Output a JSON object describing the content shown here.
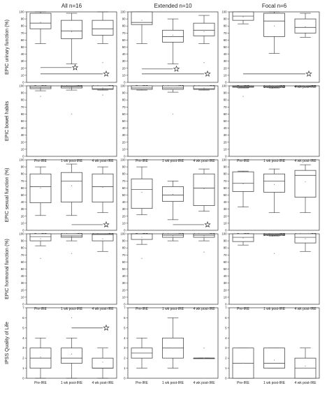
{
  "chart_data": {
    "type": "box",
    "columns": [
      "All n=16",
      "Extended n=10",
      "Focal n=6"
    ],
    "categories": [
      "Pre-IRE",
      "1 wk post-IRE",
      "4 wk post-IRE"
    ],
    "rows": [
      {
        "ylabel": "EPIC urinary function (%)",
        "ylim": [
          0,
          100
        ],
        "yticks": [
          0,
          10,
          20,
          30,
          40,
          50,
          60,
          70,
          80,
          90,
          100
        ],
        "panels": [
          {
            "boxes": [
              {
                "min": 55,
                "q1": 76,
                "median": 84,
                "q3": 98,
                "max": 100,
                "mean": 85
              },
              {
                "min": 26,
                "q1": 62,
                "median": 73,
                "q3": 88,
                "max": 98,
                "mean": 72
              },
              {
                "min": 55,
                "q1": 67,
                "median": 76,
                "q3": 88,
                "max": 100,
                "mean": 76
              }
            ],
            "outliers": [
              [
                2,
                28
              ]
            ],
            "sig": [
              {
                "from": 0,
                "to": 1,
                "y": 21,
                "star": true
              },
              {
                "from": 0,
                "to": 2,
                "y": 12,
                "star": true
              }
            ]
          },
          {
            "boxes": [
              {
                "min": 55,
                "q1": 82,
                "median": 85,
                "q3": 100,
                "max": 100,
                "mean": 88
              },
              {
                "min": 26,
                "q1": 57,
                "median": 65,
                "q3": 74,
                "max": 90,
                "mean": 67
              },
              {
                "min": 55,
                "q1": 66,
                "median": 74,
                "q3": 84,
                "max": 95,
                "mean": 72
              }
            ],
            "outliers": [
              [
                2,
                28
              ]
            ],
            "sig": [
              {
                "from": 0,
                "to": 1,
                "y": 19,
                "star": true
              },
              {
                "from": 0,
                "to": 2,
                "y": 12,
                "star": true
              }
            ]
          },
          {
            "boxes": [
              {
                "min": 83,
                "q1": 88,
                "median": 94,
                "q3": 100,
                "max": 100,
                "mean": 93
              },
              {
                "min": 41,
                "q1": 65,
                "median": 87,
                "q3": 98,
                "max": 100,
                "mean": 80
              },
              {
                "min": 64,
                "q1": 70,
                "median": 78,
                "q3": 90,
                "max": 98,
                "mean": 79
              }
            ],
            "outliers": [],
            "sig": [
              {
                "from": 0,
                "to": 2,
                "y": 12,
                "star": true
              }
            ]
          }
        ]
      },
      {
        "ylabel": "EPIC bowel habits",
        "ylim": [
          0,
          100
        ],
        "yticks": [
          0,
          10,
          20,
          30,
          40,
          50,
          60,
          70,
          80,
          90,
          100
        ],
        "panels": [
          {
            "boxes": [
              {
                "min": 93,
                "q1": 96,
                "median": 98,
                "q3": 100,
                "max": 100,
                "mean": 97
              },
              {
                "min": 94,
                "q1": 97,
                "median": 99,
                "q3": 100,
                "max": 100,
                "mean": 98
              },
              {
                "min": 94,
                "q1": 95,
                "median": 96,
                "q3": 100,
                "max": 100,
                "mean": 97
              }
            ],
            "outliers": [
              [
                0,
                85
              ],
              [
                1,
                60
              ],
              [
                2,
                87
              ]
            ],
            "sig": []
          },
          {
            "boxes": [
              {
                "min": 94,
                "q1": 95,
                "median": 97,
                "q3": 100,
                "max": 100,
                "mean": 97
              },
              {
                "min": 91,
                "q1": 95,
                "median": 97,
                "q3": 100,
                "max": 100,
                "mean": 97
              },
              {
                "min": 94,
                "q1": 95,
                "median": 96,
                "q3": 100,
                "max": 100,
                "mean": 97
              }
            ],
            "outliers": [
              [
                1,
                60
              ]
            ],
            "sig": []
          },
          {
            "boxes": [
              {
                "min": 97,
                "q1": 98,
                "median": 99,
                "q3": 100,
                "max": 100,
                "mean": 99
              },
              {
                "min": 97,
                "q1": 98,
                "median": 99,
                "q3": 100,
                "max": 100,
                "mean": 99
              },
              {
                "min": 99,
                "q1": 99,
                "median": 100,
                "q3": 100,
                "max": 100,
                "mean": 100
              }
            ],
            "outliers": [
              [
                0,
                85
              ]
            ],
            "sig": []
          }
        ]
      },
      {
        "ylabel": "EPIC sexual function (%)",
        "ylim": [
          0,
          100
        ],
        "yticks": [
          0,
          10,
          20,
          30,
          40,
          50,
          60,
          70,
          80,
          90,
          100
        ],
        "panels": [
          {
            "boxes": [
              {
                "min": 21,
                "q1": 39,
                "median": 62,
                "q3": 80,
                "max": 90,
                "mean": 60
              },
              {
                "min": 21,
                "q1": 40,
                "median": 70,
                "q3": 82,
                "max": 94,
                "mean": 63
              },
              {
                "min": 25,
                "q1": 40,
                "median": 62,
                "q3": 80,
                "max": 90,
                "mean": 61
              }
            ],
            "outliers": [],
            "sig": [
              {
                "from": 1,
                "to": 2,
                "y": 8,
                "star": true
              }
            ]
          },
          {
            "boxes": [
              {
                "min": 22,
                "q1": 31,
                "median": 58,
                "q3": 73,
                "max": 90,
                "mean": 54
              },
              {
                "min": 15,
                "q1": 41,
                "median": 50,
                "q3": 62,
                "max": 70,
                "mean": 51
              },
              {
                "min": 27,
                "q1": 35,
                "median": 60,
                "q3": 80,
                "max": 87,
                "mean": 59
              }
            ],
            "outliers": [],
            "sig": [
              {
                "from": 1,
                "to": 2,
                "y": 8,
                "star": true
              }
            ]
          },
          {
            "boxes": [
              {
                "min": 33,
                "q1": 55,
                "median": 67,
                "q3": 83,
                "max": 84,
                "mean": 66
              },
              {
                "min": 25,
                "q1": 54,
                "median": 70,
                "q3": 80,
                "max": 87,
                "mean": 65
              },
              {
                "min": 25,
                "q1": 47,
                "median": 78,
                "q3": 85,
                "max": 93,
                "mean": 69
              }
            ],
            "outliers": [],
            "sig": []
          }
        ]
      },
      {
        "ylabel": "EPIC hormonal function (%)",
        "ylim": [
          0,
          100
        ],
        "yticks": [
          0,
          10,
          20,
          30,
          40,
          50,
          60,
          70,
          80,
          90,
          100
        ],
        "panels": [
          {
            "boxes": [
              {
                "min": 83,
                "q1": 90,
                "median": 96,
                "q3": 100,
                "max": 100,
                "mean": 93
              },
              {
                "min": 90,
                "q1": 95,
                "median": 97,
                "q3": 100,
                "max": 100,
                "mean": 96
              },
              {
                "min": 75,
                "q1": 90,
                "median": 99,
                "q3": 100,
                "max": 100,
                "mean": 93
              }
            ],
            "outliers": [
              [
                0,
                65
              ],
              [
                1,
                72
              ]
            ],
            "sig": []
          },
          {
            "boxes": [
              {
                "min": 85,
                "q1": 92,
                "median": 100,
                "q3": 100,
                "max": 100,
                "mean": 95
              },
              {
                "min": 90,
                "q1": 95,
                "median": 98,
                "q3": 100,
                "max": 100,
                "mean": 97
              },
              {
                "min": 90,
                "q1": 95,
                "median": 98,
                "q3": 100,
                "max": 100,
                "mean": 97
              }
            ],
            "outliers": [
              [
                0,
                65
              ],
              [
                2,
                74
              ]
            ],
            "sig": []
          },
          {
            "boxes": [
              {
                "min": 84,
                "q1": 89,
                "median": 95,
                "q3": 100,
                "max": 100,
                "mean": 94
              },
              {
                "min": 97,
                "q1": 98,
                "median": 99,
                "q3": 100,
                "max": 100,
                "mean": 99
              },
              {
                "min": 75,
                "q1": 87,
                "median": 95,
                "q3": 100,
                "max": 100,
                "mean": 93
              }
            ],
            "outliers": [
              [
                1,
                72
              ]
            ],
            "sig": []
          }
        ]
      },
      {
        "ylabel": "IPSS Quality of Life",
        "ylim": [
          0,
          7
        ],
        "yticks": [
          0,
          1,
          2,
          3,
          4,
          5,
          6,
          7
        ],
        "panels": [
          {
            "boxes": [
              {
                "min": 0,
                "q1": 1,
                "median": 2,
                "q3": 3,
                "max": 4,
                "mean": 2.1
              },
              {
                "min": 0,
                "q1": 1.5,
                "median": 2,
                "q3": 3,
                "max": 4,
                "mean": 2.4
              },
              {
                "min": 0,
                "q1": 1,
                "median": 1,
                "q3": 2,
                "max": 3,
                "mean": 1.6
              }
            ],
            "outliers": [
              [
                1,
                6
              ]
            ],
            "sig": [
              {
                "from": 1,
                "to": 2,
                "y": 5,
                "star": true
              }
            ]
          },
          {
            "boxes": [
              {
                "min": 1,
                "q1": 2,
                "median": 2.5,
                "q3": 3,
                "max": 4,
                "mean": 2.5
              },
              {
                "min": 1,
                "q1": 2,
                "median": 3,
                "q3": 4,
                "max": 6,
                "mean": 3
              },
              {
                "min": 2,
                "q1": 2,
                "median": 2,
                "q3": 2,
                "max": 2,
                "mean": 2
              }
            ],
            "outliers": [
              [
                0,
                0
              ],
              [
                2,
                3
              ],
              [
                2,
                0
              ]
            ],
            "sig": []
          },
          {
            "boxes": [
              {
                "min": 0,
                "q1": 0,
                "median": 1.5,
                "q3": 3,
                "max": 3,
                "mean": 1.5
              },
              {
                "min": 1,
                "q1": 1,
                "median": 1.5,
                "q3": 3,
                "max": 3,
                "mean": 1.8
              },
              {
                "min": 0,
                "q1": 0,
                "median": 1,
                "q3": 2,
                "max": 3,
                "mean": 1.2
              }
            ],
            "outliers": [],
            "sig": []
          }
        ]
      }
    ]
  }
}
